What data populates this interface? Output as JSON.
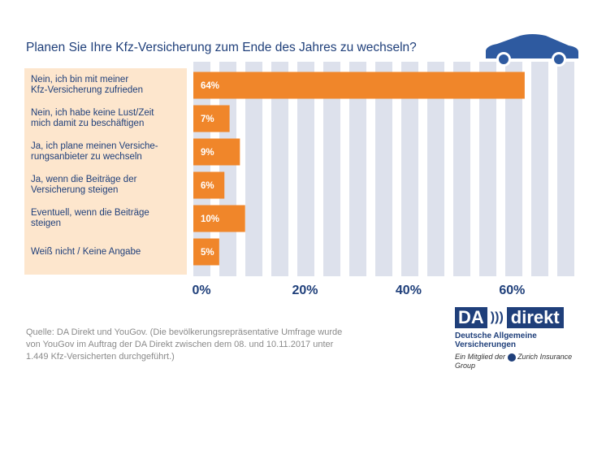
{
  "chart_data": {
    "type": "bar",
    "orientation": "horizontal",
    "title": "Planen Sie Ihre Kfz-Versicherung zum Ende des Jahres zu wechseln?",
    "categories": [
      "Nein, ich bin mit meiner\nKfz-Versicherung zufrieden",
      "Nein, ich habe keine Lust/Zeit\nmich damit zu beschäftigen",
      "Ja, ich plane meinen Versiche-\nrungsanbieter zu wechseln",
      "Ja, wenn die Beiträge der\nVersicherung steigen",
      "Eventuell, wenn die Beiträge\nsteigen",
      "Weiß nicht / Keine Angabe"
    ],
    "values": [
      64,
      7,
      9,
      6,
      10,
      5
    ],
    "value_labels": [
      "64%",
      "7%",
      "9%",
      "6%",
      "10%",
      "5%"
    ],
    "color": "#f0862a",
    "xlim": [
      0,
      75
    ],
    "xticks": [
      {
        "value": 0,
        "label": "0%"
      },
      {
        "value": 20,
        "label": "20%"
      },
      {
        "value": 40,
        "label": "40%"
      },
      {
        "value": 60,
        "label": "60%"
      }
    ],
    "source": "Quelle: DA Direkt und YouGov. (Die bevölkerungsrepräsentative Umfrage wurde\nvon YouGov im Auftrag der DA Direkt zwischen dem 08. und 10.11.2017 unter\n1.449 Kfz-Versicherten durchgeführt.)"
  },
  "logo": {
    "brand": "DA",
    "name": "direkt",
    "tagline": "Deutsche Allgemeine Versicherungen",
    "member": "Ein Mitglied der",
    "group": "Zurich Insurance Group"
  }
}
